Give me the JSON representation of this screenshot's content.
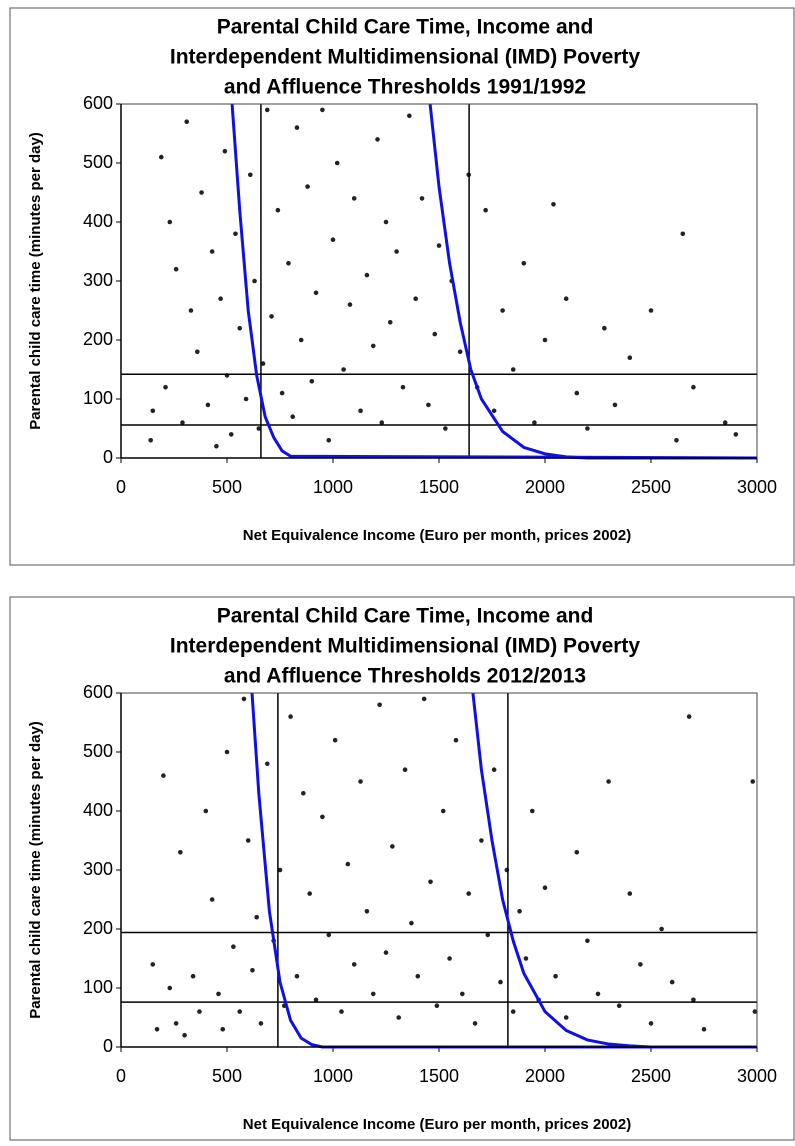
{
  "chart_data": [
    {
      "type": "scatter",
      "title": [
        "Parental Child Care Time, Income and",
        "Interdependent Multidimensional (IMD) Poverty",
        "and Affluence Thresholds 1991/1992"
      ],
      "x_label": "Net Equivalence  Income  (Euro per month, prices  2002)",
      "y_label": "Parental child  care time  (minutes per day)",
      "xlim": [
        0,
        3000
      ],
      "xticks": [
        0,
        500,
        1000,
        1500,
        2000,
        2500,
        3000
      ],
      "ylim": [
        0,
        600
      ],
      "yticks": [
        0,
        100,
        200,
        300,
        400,
        500,
        600
      ],
      "vertical_thresholds": [
        660,
        1642
      ],
      "horizontal_thresholds": [
        142,
        56
      ],
      "threshold_color": "#000000",
      "series": [
        {
          "color": "#222222",
          "x": [
            140,
            150,
            190,
            210,
            230,
            260,
            290,
            310,
            330,
            360,
            380,
            410,
            430,
            450,
            470,
            490,
            500,
            520,
            540,
            560,
            590,
            610,
            630,
            650,
            670,
            690,
            710,
            740,
            760,
            790,
            810,
            830,
            850,
            880,
            900,
            920,
            950,
            980,
            1000,
            1020,
            1050,
            1080,
            1100,
            1130,
            1160,
            1190,
            1210,
            1230,
            1250,
            1270,
            1300,
            1330,
            1360,
            1390,
            1420,
            1450,
            1480,
            1500,
            1530,
            1560,
            1600,
            1640,
            1680,
            1720,
            1760,
            1800,
            1850,
            1900,
            1950,
            2000,
            2040,
            2100,
            2150,
            2200,
            2280,
            2330,
            2400,
            2500,
            2620,
            2650,
            2700,
            2850,
            2900
          ],
          "values": [
            30,
            80,
            510,
            120,
            400,
            320,
            60,
            570,
            250,
            180,
            450,
            90,
            350,
            20,
            270,
            520,
            140,
            40,
            380,
            220,
            100,
            480,
            300,
            50,
            160,
            590,
            240,
            420,
            110,
            330,
            70,
            560,
            200,
            460,
            130,
            280,
            590,
            30,
            370,
            500,
            150,
            260,
            440,
            80,
            310,
            190,
            540,
            60,
            400,
            230,
            350,
            120,
            580,
            270,
            440,
            90,
            210,
            360,
            50,
            300,
            180,
            480,
            120,
            420,
            80,
            250,
            150,
            330,
            60,
            200,
            430,
            270,
            110,
            50,
            220,
            90,
            170,
            250,
            30,
            380,
            120,
            60,
            40
          ]
        },
        {
          "type": "line",
          "color": "#1010e0",
          "x": [
            524,
            560,
            600,
            640,
            680,
            720,
            760,
            800,
            3000
          ],
          "values": [
            600,
            420,
            250,
            140,
            70,
            35,
            12,
            3,
            0
          ]
        },
        {
          "type": "line",
          "color": "#1010e0",
          "x": [
            1458,
            1500,
            1550,
            1600,
            1650,
            1700,
            1800,
            1900,
            2000,
            2100,
            2200,
            3000
          ],
          "values": [
            600,
            460,
            330,
            230,
            150,
            100,
            45,
            18,
            7,
            2,
            0,
            0
          ]
        }
      ]
    },
    {
      "type": "scatter",
      "title": [
        "Parental Child Care Time, Income and",
        "Interdependent Multidimensional (IMD) Poverty",
        "and Affluence Thresholds 2012/2013"
      ],
      "x_label": "Net Equivalence  Income  (Euro per month, prices  2002)",
      "y_label": "Parental child  care time  (minutes per day)",
      "xlim": [
        0,
        3000
      ],
      "xticks": [
        0,
        500,
        1000,
        1500,
        2000,
        2500,
        3000
      ],
      "ylim": [
        0,
        600
      ],
      "yticks": [
        0,
        100,
        200,
        300,
        400,
        500,
        600
      ],
      "vertical_thresholds": [
        740,
        1825
      ],
      "horizontal_thresholds": [
        194,
        76
      ],
      "threshold_color": "#000000",
      "series": [
        {
          "color": "#222222",
          "x": [
            150,
            170,
            200,
            230,
            260,
            280,
            300,
            340,
            370,
            400,
            430,
            460,
            480,
            500,
            530,
            560,
            580,
            600,
            620,
            640,
            660,
            690,
            720,
            750,
            770,
            800,
            830,
            860,
            890,
            920,
            950,
            980,
            1010,
            1040,
            1070,
            1100,
            1130,
            1160,
            1190,
            1220,
            1250,
            1280,
            1310,
            1340,
            1370,
            1400,
            1430,
            1460,
            1490,
            1520,
            1550,
            1580,
            1610,
            1640,
            1670,
            1700,
            1730,
            1760,
            1790,
            1820,
            1850,
            1880,
            1910,
            1940,
            1970,
            2000,
            2050,
            2100,
            2150,
            2200,
            2250,
            2300,
            2350,
            2400,
            2450,
            2500,
            2550,
            2600,
            2680,
            2700,
            2750,
            2980,
            2990
          ],
          "values": [
            140,
            30,
            460,
            100,
            40,
            330,
            20,
            120,
            60,
            400,
            250,
            90,
            30,
            500,
            170,
            60,
            590,
            350,
            130,
            220,
            40,
            480,
            180,
            300,
            70,
            560,
            120,
            430,
            260,
            80,
            390,
            190,
            520,
            60,
            310,
            140,
            450,
            230,
            90,
            580,
            160,
            340,
            50,
            470,
            210,
            120,
            590,
            280,
            70,
            400,
            150,
            520,
            90,
            260,
            40,
            350,
            190,
            470,
            110,
            300,
            60,
            230,
            150,
            400,
            80,
            270,
            120,
            50,
            330,
            180,
            90,
            450,
            70,
            260,
            140,
            40,
            200,
            110,
            560,
            80,
            30,
            450,
            60
          ]
        },
        {
          "type": "line",
          "color": "#1010e0",
          "x": [
            618,
            650,
            700,
            750,
            800,
            850,
            900,
            950,
            3000
          ],
          "values": [
            600,
            430,
            230,
            110,
            45,
            15,
            4,
            0,
            0
          ]
        },
        {
          "type": "line",
          "color": "#1010e0",
          "x": [
            1660,
            1700,
            1750,
            1800,
            1850,
            1900,
            2000,
            2100,
            2200,
            2300,
            2400,
            2500,
            3000
          ],
          "values": [
            600,
            470,
            350,
            250,
            180,
            125,
            60,
            28,
            12,
            5,
            2,
            0,
            0
          ]
        }
      ]
    }
  ]
}
